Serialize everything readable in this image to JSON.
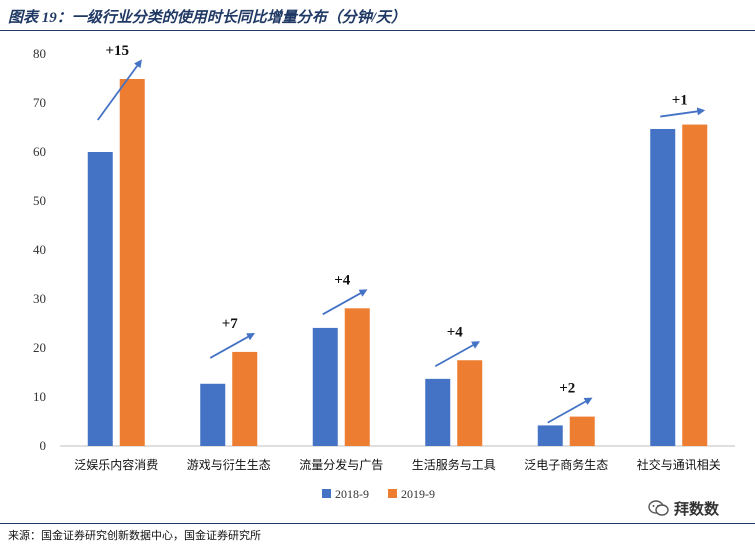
{
  "title": "图表 19：一级行业分类的使用时长同比增量分布（分钟/天）",
  "source": "来源：国金证券研究创新数据中心，国金证券研究所",
  "watermark": "拜数数",
  "colors": {
    "series_2018": "#4472c4",
    "series_2019": "#ed7d31",
    "arrow": "#4472c4",
    "title": "#1f3864"
  },
  "chart_data": {
    "type": "bar",
    "title": "",
    "xlabel": "",
    "ylabel": "",
    "ylim": [
      0,
      80
    ],
    "yticks": [
      0,
      10,
      20,
      30,
      40,
      50,
      60,
      70,
      80
    ],
    "grid": false,
    "legend_position": "bottom",
    "categories": [
      "泛娱乐内容消费",
      "游戏与衍生生态",
      "流量分发与广告",
      "生活服务与工具",
      "泛电子商务生态",
      "社交与通讯相关"
    ],
    "series": [
      {
        "name": "2018-9",
        "values": [
          60,
          12.7,
          24.1,
          13.7,
          4.2,
          64.7
        ]
      },
      {
        "name": "2019-9",
        "values": [
          74.9,
          19.2,
          28.1,
          17.5,
          6,
          65.6
        ]
      }
    ],
    "annotations": [
      "+15",
      "+7",
      "+4",
      "+4",
      "+2",
      "+1"
    ]
  }
}
